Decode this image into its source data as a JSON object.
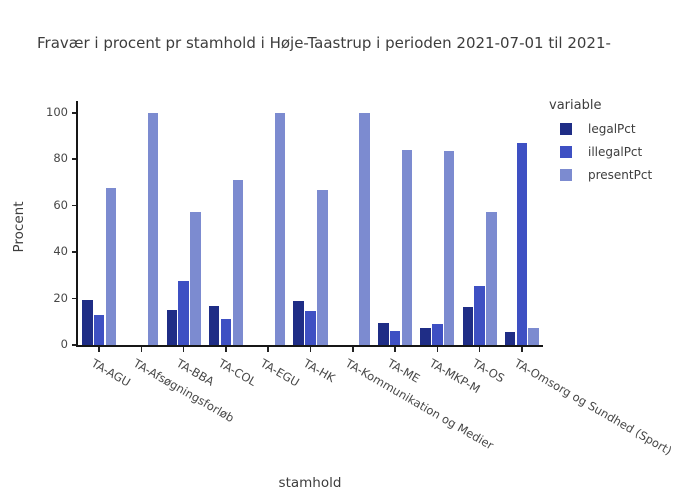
{
  "chart_data": {
    "type": "bar",
    "title": "Fravær i procent pr stamhold i Høje-Taastrup i perioden 2021-07-01 til 2021-",
    "xlabel": "stamhold",
    "ylabel": "Procent",
    "legend_title": "variable",
    "legend_position": "right",
    "grid": false,
    "ylim": [
      0,
      100
    ],
    "yticks": [
      0,
      20,
      40,
      60,
      80,
      100
    ],
    "categories": [
      "TA-AGU",
      "TA-Afsøgningsforløb",
      "TA-BBA",
      "TA-COL",
      "TA-EGU",
      "TA-HK",
      "TA-Kommunikation og Medier",
      "TA-ME",
      "TA-MKP-M",
      "TA-OS",
      "TA-Omsorg og Sundhed (Sport)"
    ],
    "series": [
      {
        "name": "legalPct",
        "color": "#1f2d86",
        "values": [
          19.5,
          0,
          15.0,
          17.0,
          0,
          19.0,
          0,
          9.5,
          7.3,
          16.5,
          5.5
        ]
      },
      {
        "name": "illegalPct",
        "color": "#3e50c3",
        "values": [
          12.8,
          0,
          27.8,
          11.3,
          0,
          14.5,
          0,
          6.0,
          8.9,
          25.5,
          87.2
        ]
      },
      {
        "name": "presentPct",
        "color": "#7c8bd0",
        "values": [
          67.8,
          100,
          57.3,
          71.3,
          100,
          66.6,
          100,
          84.2,
          83.5,
          57.2,
          7.2
        ]
      }
    ]
  }
}
